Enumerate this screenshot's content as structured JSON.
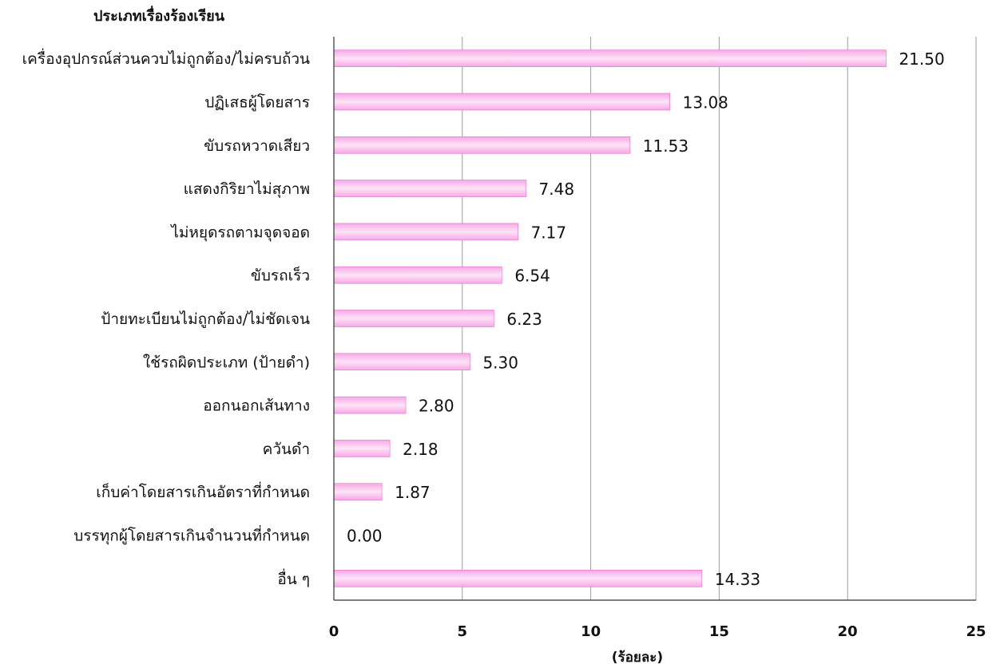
{
  "chart_data": {
    "type": "bar",
    "orientation": "horizontal",
    "title": "ประเภทเรื่องร้องเรียน",
    "xlabel": "(ร้อยละ)",
    "ylabel": "",
    "xlim": [
      0,
      25
    ],
    "x_ticks": [
      0,
      5,
      10,
      15,
      20,
      25
    ],
    "grid": true,
    "legend": "none",
    "bar_color": "#f7a8e6",
    "bar_highlight_color": "#fde3f7",
    "bar_edge_color": "#e070cc",
    "gridline_color": "#9e9e9e",
    "categories": [
      "เครื่องอุปกรณ์ส่วนควบไม่ถูกต้อง/ไม่ครบถ้วน",
      "ปฏิเสธผู้โดยสาร",
      "ขับรถหวาดเสียว",
      "แสดงกิริยาไม่สุภาพ",
      "ไม่หยุดรถตามจุดจอด",
      "ขับรถเร็ว",
      "ป้ายทะเบียนไม่ถูกต้อง/ไม่ชัดเจน",
      "ใช้รถผิดประเภท (ป้ายดำ)",
      "ออกนอกเส้นทาง",
      "ควันดำ",
      "เก็บค่าโดยสารเกินอัตราที่กำหนด",
      "บรรทุกผู้โดยสารเกินจำนวนที่กำหนด",
      "อื่น ๆ"
    ],
    "values": [
      21.5,
      13.08,
      11.53,
      7.48,
      7.17,
      6.54,
      6.23,
      5.3,
      2.8,
      2.18,
      1.87,
      0.0,
      14.33
    ],
    "value_labels": [
      "21.50",
      "13.08",
      "11.53",
      "7.48",
      "7.17",
      "6.54",
      "6.23",
      "5.30",
      "2.80",
      "2.18",
      "1.87",
      "0.00",
      "14.33"
    ]
  }
}
